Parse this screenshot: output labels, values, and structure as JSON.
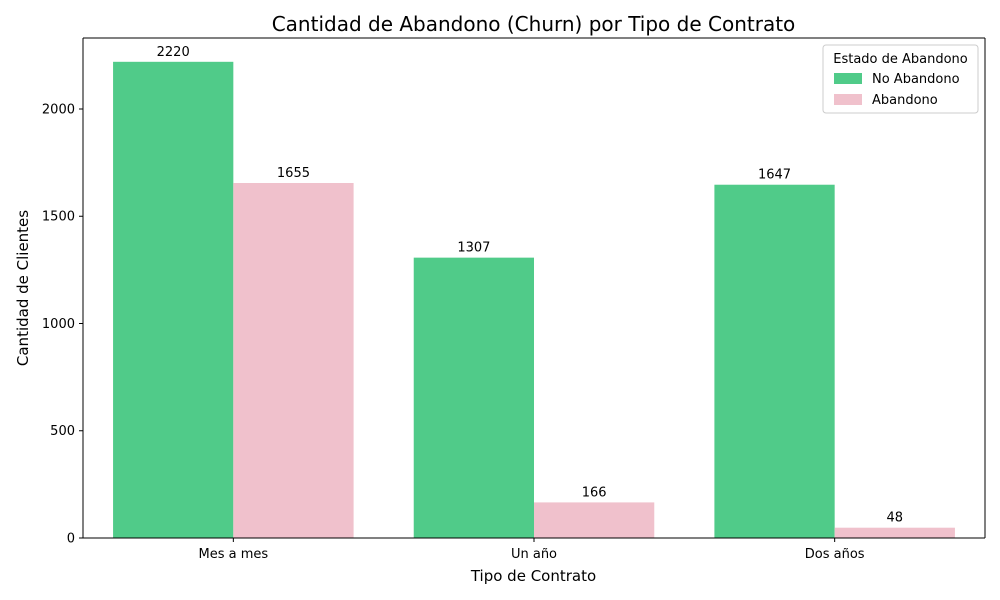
{
  "chart_data": {
    "type": "bar",
    "title": "Cantidad de Abandono (Churn) por Tipo de Contrato",
    "xlabel": "Tipo de Contrato",
    "ylabel": "Cantidad de Clientes",
    "categories": [
      "Mes a mes",
      "Un año",
      "Dos años"
    ],
    "series": [
      {
        "name": "No Abandono",
        "color": "#50cb89",
        "values": [
          2220,
          1307,
          1647
        ]
      },
      {
        "name": "Abandono",
        "color": "#f0c1cc",
        "values": [
          1655,
          166,
          48
        ]
      }
    ],
    "ylim": [
      0,
      2331
    ],
    "yticks": [
      0,
      500,
      1000,
      1500,
      2000
    ],
    "grid": false,
    "legend": {
      "title": "Estado de Abandono",
      "placement": "top-right"
    }
  }
}
